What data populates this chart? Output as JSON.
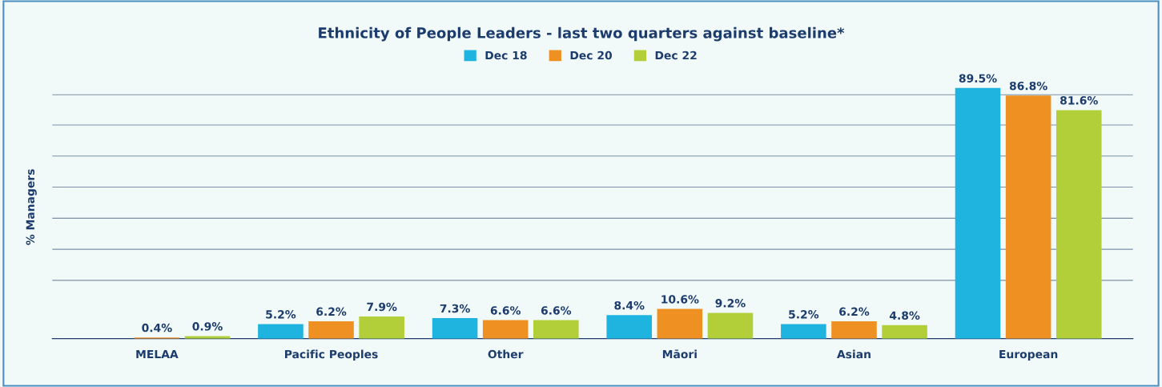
{
  "chart_data": {
    "type": "bar",
    "title": "Ethnicity of People Leaders - last two quarters against baseline*",
    "ylabel": "% Managers",
    "categories": [
      "MELAA",
      "Pacific Peoples",
      "Other",
      "Māori",
      "Asian",
      "European"
    ],
    "series": [
      {
        "name": "Dec 18",
        "color": "#1fb4e0",
        "values": [
          null,
          5.2,
          7.3,
          8.4,
          5.2,
          89.5
        ],
        "value_labels": [
          null,
          "5.2%",
          "7.3%",
          "8.4%",
          "5.2%",
          "89.5%"
        ]
      },
      {
        "name": "Dec 20",
        "color": "#ee9122",
        "values": [
          0.4,
          6.2,
          6.6,
          10.6,
          6.2,
          86.8
        ],
        "value_labels": [
          "0.4%",
          "6.2%",
          "6.6%",
          "10.6%",
          "6.2%",
          "86.8%"
        ]
      },
      {
        "name": "Dec 22",
        "color": "#b2cf3a",
        "values": [
          0.9,
          7.9,
          6.6,
          9.2,
          4.8,
          81.6
        ],
        "value_labels": [
          "0.9%",
          "7.9%",
          "6.6%",
          "9.2%",
          "4.8%",
          "81.6%"
        ]
      }
    ],
    "ref_lines": [
      {
        "axis": "y",
        "value": 20.8,
        "color": "#7d8fa8"
      },
      {
        "axis": "y",
        "value": 31.9,
        "color": "#7d8fa8"
      },
      {
        "axis": "y",
        "value": 43,
        "color": "#7d8fa8"
      },
      {
        "axis": "y",
        "value": 54.1,
        "color": "#7d8fa8"
      },
      {
        "axis": "y",
        "value": 65.2,
        "color": "#7d8fa8"
      },
      {
        "axis": "y",
        "value": 76.3,
        "color": "#7d8fa8"
      },
      {
        "axis": "y",
        "value": 87.1,
        "color": "#7d8fa8"
      }
    ],
    "legend": "top",
    "tick_labels": "x"
  }
}
